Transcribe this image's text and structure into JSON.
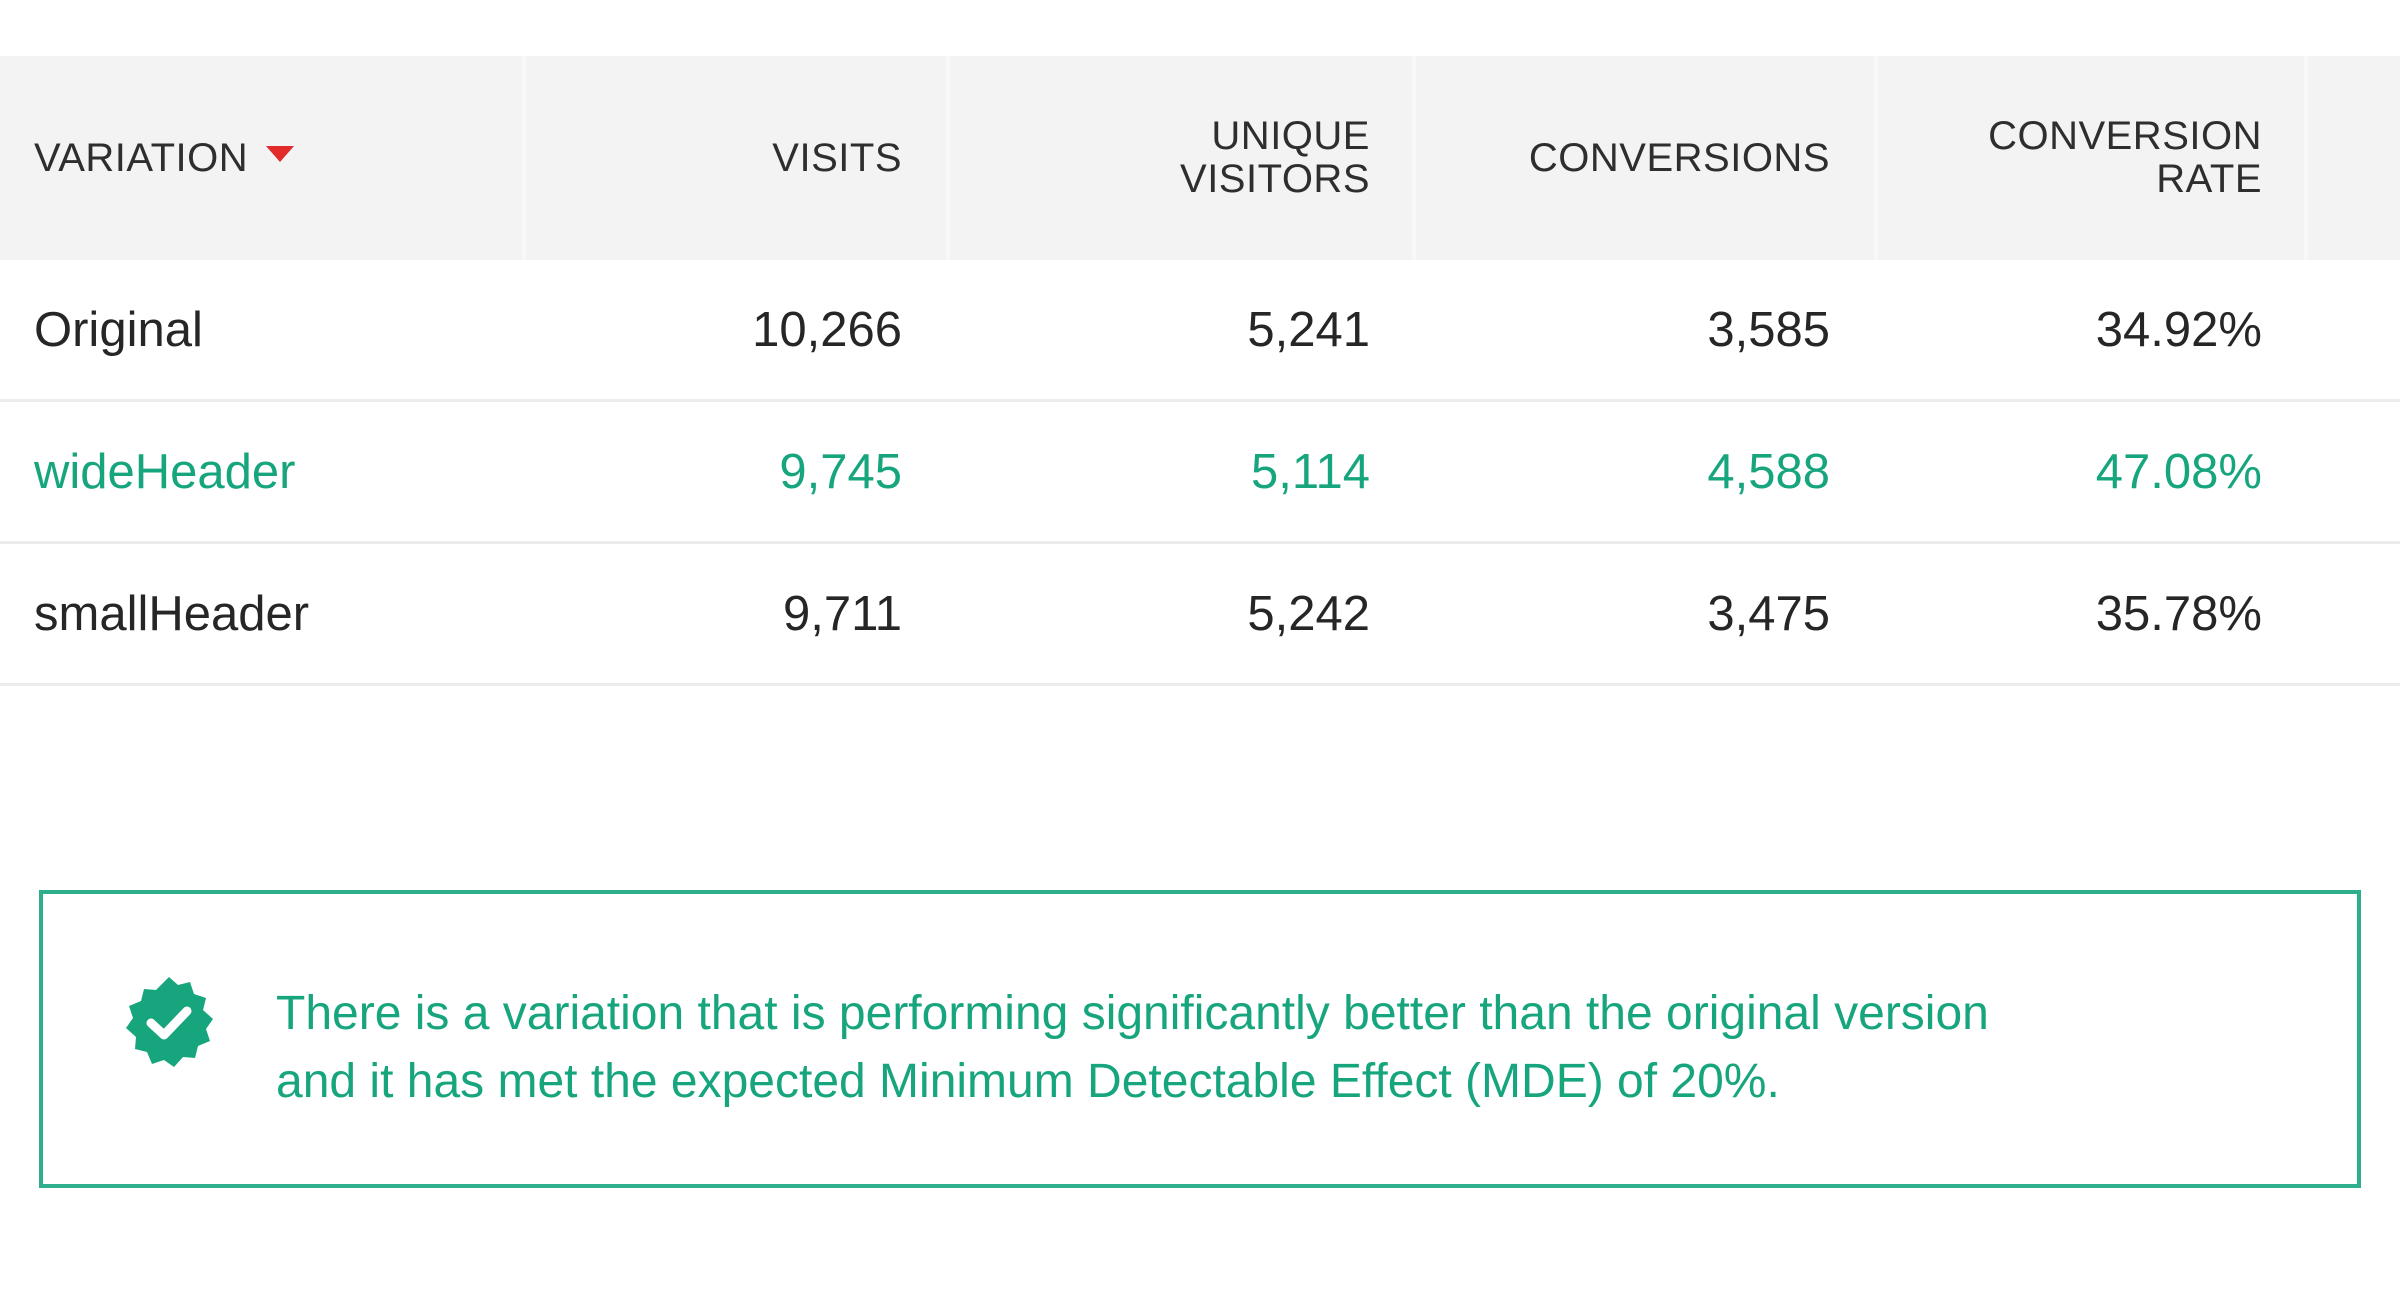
{
  "table": {
    "columns": [
      {
        "key": "variation",
        "label_line1": "",
        "label_line2": "VARIATION",
        "sorted": "descending"
      },
      {
        "key": "visits",
        "label_line1": "",
        "label_line2": "VISITS"
      },
      {
        "key": "unique_visitors",
        "label_line1": "UNIQUE",
        "label_line2": "VISITORS"
      },
      {
        "key": "conversions",
        "label_line1": "",
        "label_line2": "CONVERSIONS"
      },
      {
        "key": "conversion_rate",
        "label_line1": "CONVERSION",
        "label_line2": "RATE"
      }
    ],
    "rows": [
      {
        "variation": "Original",
        "visits": "10,266",
        "unique_visitors": "5,241",
        "conversions": "3,585",
        "conversion_rate": "34.92%",
        "highlighted": false
      },
      {
        "variation": "wideHeader",
        "visits": "9,745",
        "unique_visitors": "5,114",
        "conversions": "4,588",
        "conversion_rate": "47.08%",
        "highlighted": true
      },
      {
        "variation": "smallHeader",
        "visits": "9,711",
        "unique_visitors": "5,242",
        "conversions": "3,475",
        "conversion_rate": "35.78%",
        "highlighted": false
      }
    ]
  },
  "notice": {
    "icon": "verified-badge-check-icon",
    "line1": "There is a variation that is performing significantly better than the original version",
    "line2": "and it has met the expected Minimum Detectable Effect (MDE) of 20%."
  },
  "colors": {
    "success": "#17a57e",
    "notice_border": "#2fae8c",
    "sort_caret": "#e32a2a",
    "header_bg": "#f3f3f3"
  }
}
